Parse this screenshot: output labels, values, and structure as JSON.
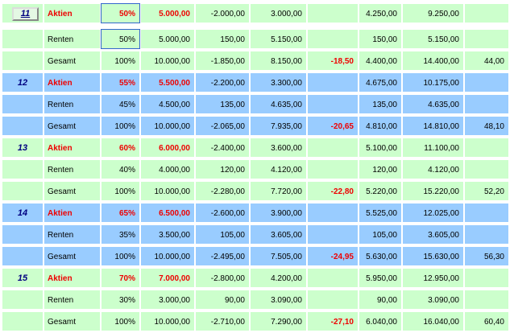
{
  "rows": [
    {
      "id": "11",
      "label": "Aktien",
      "pct": "50%",
      "amount": "5.000,00",
      "c5": "-2.000,00",
      "c6": "3.000,00",
      "c7": "",
      "c8": "4.250,00",
      "c9": "9.250,00",
      "c10": "",
      "color": "green",
      "red": true
    },
    {
      "id": "",
      "label": "Renten",
      "pct": "50%",
      "amount": "5.000,00",
      "c5": "150,00",
      "c6": "5.150,00",
      "c7": "",
      "c8": "150,00",
      "c9": "5.150,00",
      "c10": "",
      "color": "green",
      "red": false
    },
    {
      "id": "",
      "label": "Gesamt",
      "pct": "100%",
      "amount": "10.000,00",
      "c5": "-1.850,00",
      "c6": "8.150,00",
      "c7": "-18,50",
      "c8": "4.400,00",
      "c9": "14.400,00",
      "c10": "44,00",
      "color": "green",
      "red": false
    },
    {
      "id": "12",
      "label": "Aktien",
      "pct": "55%",
      "amount": "5.500,00",
      "c5": "-2.200,00",
      "c6": "3.300,00",
      "c7": "",
      "c8": "4.675,00",
      "c9": "10.175,00",
      "c10": "",
      "color": "blue",
      "red": true
    },
    {
      "id": "",
      "label": "Renten",
      "pct": "45%",
      "amount": "4.500,00",
      "c5": "135,00",
      "c6": "4.635,00",
      "c7": "",
      "c8": "135,00",
      "c9": "4.635,00",
      "c10": "",
      "color": "blue",
      "red": false
    },
    {
      "id": "",
      "label": "Gesamt",
      "pct": "100%",
      "amount": "10.000,00",
      "c5": "-2.065,00",
      "c6": "7.935,00",
      "c7": "-20,65",
      "c8": "4.810,00",
      "c9": "14.810,00",
      "c10": "48,10",
      "color": "blue",
      "red": false
    },
    {
      "id": "13",
      "label": "Aktien",
      "pct": "60%",
      "amount": "6.000,00",
      "c5": "-2.400,00",
      "c6": "3.600,00",
      "c7": "",
      "c8": "5.100,00",
      "c9": "11.100,00",
      "c10": "",
      "color": "green",
      "red": true
    },
    {
      "id": "",
      "label": "Renten",
      "pct": "40%",
      "amount": "4.000,00",
      "c5": "120,00",
      "c6": "4.120,00",
      "c7": "",
      "c8": "120,00",
      "c9": "4.120,00",
      "c10": "",
      "color": "green",
      "red": false
    },
    {
      "id": "",
      "label": "Gesamt",
      "pct": "100%",
      "amount": "10.000,00",
      "c5": "-2.280,00",
      "c6": "7.720,00",
      "c7": "-22,80",
      "c8": "5.220,00",
      "c9": "15.220,00",
      "c10": "52,20",
      "color": "green",
      "red": false
    },
    {
      "id": "14",
      "label": "Aktien",
      "pct": "65%",
      "amount": "6.500,00",
      "c5": "-2.600,00",
      "c6": "3.900,00",
      "c7": "",
      "c8": "5.525,00",
      "c9": "12.025,00",
      "c10": "",
      "color": "blue",
      "red": true
    },
    {
      "id": "",
      "label": "Renten",
      "pct": "35%",
      "amount": "3.500,00",
      "c5": "105,00",
      "c6": "3.605,00",
      "c7": "",
      "c8": "105,00",
      "c9": "3.605,00",
      "c10": "",
      "color": "blue",
      "red": false
    },
    {
      "id": "",
      "label": "Gesamt",
      "pct": "100%",
      "amount": "10.000,00",
      "c5": "-2.495,00",
      "c6": "7.505,00",
      "c7": "-24,95",
      "c8": "5.630,00",
      "c9": "15.630,00",
      "c10": "56,30",
      "color": "blue",
      "red": false
    },
    {
      "id": "15",
      "label": "Aktien",
      "pct": "70%",
      "amount": "7.000,00",
      "c5": "-2.800,00",
      "c6": "4.200,00",
      "c7": "",
      "c8": "5.950,00",
      "c9": "12.950,00",
      "c10": "",
      "color": "green",
      "red": true
    },
    {
      "id": "",
      "label": "Renten",
      "pct": "30%",
      "amount": "3.000,00",
      "c5": "90,00",
      "c6": "3.090,00",
      "c7": "",
      "c8": "90,00",
      "c9": "3.090,00",
      "c10": "",
      "color": "green",
      "red": false
    },
    {
      "id": "",
      "label": "Gesamt",
      "pct": "100%",
      "amount": "10.000,00",
      "c5": "-2.710,00",
      "c6": "7.290,00",
      "c7": "-27,10",
      "c8": "6.040,00",
      "c9": "16.040,00",
      "c10": "60,40",
      "color": "green",
      "red": false
    }
  ]
}
